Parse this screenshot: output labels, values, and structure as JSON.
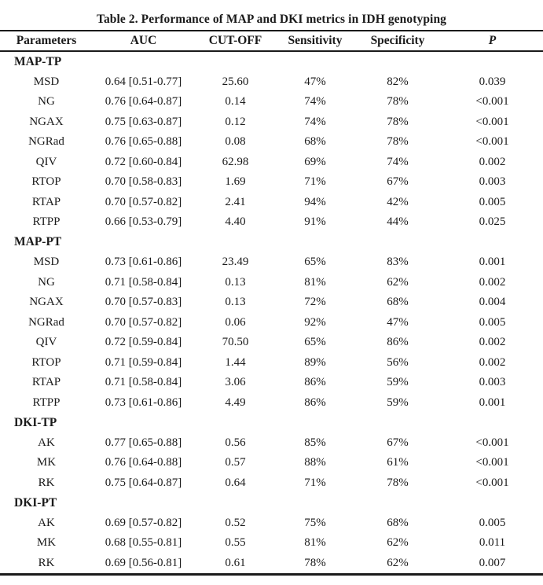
{
  "table": {
    "caption": "Table 2. Performance of MAP and DKI metrics in IDH genotyping",
    "columns": {
      "parameter": "Parameters",
      "auc": "AUC",
      "cut_off": "CUT-OFF",
      "sensitivity": "Sensitivity",
      "specificity": "Specificity",
      "p": "P"
    },
    "sections": [
      {
        "label": "MAP-TP",
        "rows": [
          {
            "parameter": "MSD",
            "auc": "0.64 [0.51-0.77]",
            "cut_off": "25.60",
            "sensitivity": "47%",
            "specificity": "82%",
            "p": "0.039"
          },
          {
            "parameter": "NG",
            "auc": "0.76 [0.64-0.87]",
            "cut_off": "0.14",
            "sensitivity": "74%",
            "specificity": "78%",
            "p": "<0.001"
          },
          {
            "parameter": "NGAX",
            "auc": "0.75 [0.63-0.87]",
            "cut_off": "0.12",
            "sensitivity": "74%",
            "specificity": "78%",
            "p": "<0.001"
          },
          {
            "parameter": "NGRad",
            "auc": "0.76 [0.65-0.88]",
            "cut_off": "0.08",
            "sensitivity": "68%",
            "specificity": "78%",
            "p": "<0.001"
          },
          {
            "parameter": "QIV",
            "auc": "0.72 [0.60-0.84]",
            "cut_off": "62.98",
            "sensitivity": "69%",
            "specificity": "74%",
            "p": "0.002"
          },
          {
            "parameter": "RTOP",
            "auc": "0.70 [0.58-0.83]",
            "cut_off": "1.69",
            "sensitivity": "71%",
            "specificity": "67%",
            "p": "0.003"
          },
          {
            "parameter": "RTAP",
            "auc": "0.70 [0.57-0.82]",
            "cut_off": "2.41",
            "sensitivity": "94%",
            "specificity": "42%",
            "p": "0.005"
          },
          {
            "parameter": "RTPP",
            "auc": "0.66 [0.53-0.79]",
            "cut_off": "4.40",
            "sensitivity": "91%",
            "specificity": "44%",
            "p": "0.025"
          }
        ]
      },
      {
        "label": "MAP-PT",
        "rows": [
          {
            "parameter": "MSD",
            "auc": "0.73 [0.61-0.86]",
            "cut_off": "23.49",
            "sensitivity": "65%",
            "specificity": "83%",
            "p": "0.001"
          },
          {
            "parameter": "NG",
            "auc": "0.71 [0.58-0.84]",
            "cut_off": "0.13",
            "sensitivity": "81%",
            "specificity": "62%",
            "p": "0.002"
          },
          {
            "parameter": "NGAX",
            "auc": "0.70 [0.57-0.83]",
            "cut_off": "0.13",
            "sensitivity": "72%",
            "specificity": "68%",
            "p": "0.004"
          },
          {
            "parameter": "NGRad",
            "auc": "0.70 [0.57-0.82]",
            "cut_off": "0.06",
            "sensitivity": "92%",
            "specificity": "47%",
            "p": "0.005"
          },
          {
            "parameter": "QIV",
            "auc": "0.72 [0.59-0.84]",
            "cut_off": "70.50",
            "sensitivity": "65%",
            "specificity": "86%",
            "p": "0.002"
          },
          {
            "parameter": "RTOP",
            "auc": "0.71 [0.59-0.84]",
            "cut_off": "1.44",
            "sensitivity": "89%",
            "specificity": "56%",
            "p": "0.002"
          },
          {
            "parameter": "RTAP",
            "auc": "0.71 [0.58-0.84]",
            "cut_off": "3.06",
            "sensitivity": "86%",
            "specificity": "59%",
            "p": "0.003"
          },
          {
            "parameter": "RTPP",
            "auc": "0.73 [0.61-0.86]",
            "cut_off": "4.49",
            "sensitivity": "86%",
            "specificity": "59%",
            "p": "0.001"
          }
        ]
      },
      {
        "label": "DKI-TP",
        "rows": [
          {
            "parameter": "AK",
            "auc": "0.77 [0.65-0.88]",
            "cut_off": "0.56",
            "sensitivity": "85%",
            "specificity": "67%",
            "p": "<0.001"
          },
          {
            "parameter": "MK",
            "auc": "0.76 [0.64-0.88]",
            "cut_off": "0.57",
            "sensitivity": "88%",
            "specificity": "61%",
            "p": "<0.001"
          },
          {
            "parameter": "RK",
            "auc": "0.75 [0.64-0.87]",
            "cut_off": "0.64",
            "sensitivity": "71%",
            "specificity": "78%",
            "p": "<0.001"
          }
        ]
      },
      {
        "label": "DKI-PT",
        "rows": [
          {
            "parameter": "AK",
            "auc": "0.69 [0.57-0.82]",
            "cut_off": "0.52",
            "sensitivity": "75%",
            "specificity": "68%",
            "p": "0.005"
          },
          {
            "parameter": "MK",
            "auc": "0.68 [0.55-0.81]",
            "cut_off": "0.55",
            "sensitivity": "81%",
            "specificity": "62%",
            "p": "0.011"
          },
          {
            "parameter": "RK",
            "auc": "0.69 [0.56-0.81]",
            "cut_off": "0.61",
            "sensitivity": "78%",
            "specificity": "62%",
            "p": "0.007"
          }
        ]
      }
    ]
  }
}
